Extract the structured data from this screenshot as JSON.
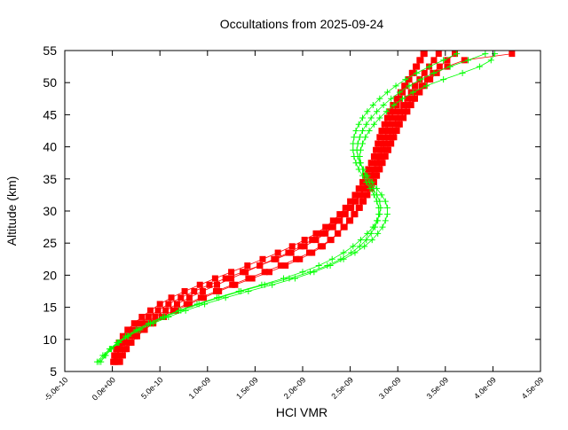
{
  "chart_data": {
    "type": "line",
    "title": "Occultations from 2025-09-24",
    "xlabel": "HCl VMR",
    "ylabel": "Altitude (km)",
    "xlim": [
      -5e-10,
      4.5e-09
    ],
    "ylim": [
      5,
      55
    ],
    "x_ticks": [
      -5e-10,
      0,
      5e-10,
      1e-09,
      1.5e-09,
      2e-09,
      2.5e-09,
      3e-09,
      3.5e-09,
      4e-09,
      4.5e-09
    ],
    "x_tick_labels": [
      "-5.0e-10",
      "0.0e+00",
      "5.0e-10",
      "1.0e-09",
      "1.5e-09",
      "2.0e-09",
      "2.5e-09",
      "3.0e-09",
      "3.5e-09",
      "4.0e-09",
      "4.5e-09"
    ],
    "y_ticks": [
      5,
      10,
      15,
      20,
      25,
      30,
      35,
      40,
      45,
      50,
      55
    ],
    "y_tick_labels": [
      "5",
      "10",
      "15",
      "20",
      "25",
      "30",
      "35",
      "40",
      "45",
      "50",
      "55"
    ],
    "grid": false,
    "colors": {
      "series_red": "#ff0000",
      "series_green": "#00ff00"
    },
    "altitudes": [
      6.5,
      7.5,
      8.5,
      9.5,
      10.5,
      11.5,
      12.5,
      13.5,
      14.5,
      15.5,
      16.5,
      17.5,
      18.5,
      19.5,
      20.5,
      21.5,
      22.5,
      23.5,
      24.5,
      25.5,
      26.5,
      27.5,
      28.5,
      29.5,
      30.5,
      31.5,
      32.5,
      33.5,
      34.5,
      35.5,
      36.5,
      37.5,
      38.5,
      39.5,
      40.5,
      41.5,
      42.5,
      43.5,
      44.5,
      45.5,
      46.5,
      47.5,
      48.5,
      49.5,
      50.5,
      51.5,
      52.5,
      53.5,
      54.5
    ],
    "series": [
      {
        "color": "red",
        "marker": "square",
        "x": [
          3e-11,
          5e-11,
          8e-11,
          1.2e-10,
          1.8e-10,
          2.6e-10,
          3.5e-10,
          4.5e-10,
          5.6e-10,
          6.8e-10,
          8.1e-10,
          9.5e-10,
          1.1e-09,
          1.25e-09,
          1.4e-09,
          1.55e-09,
          1.7e-09,
          1.85e-09,
          1.98e-09,
          2.1e-09,
          2.2e-09,
          2.3e-09,
          2.38e-09,
          2.44e-09,
          2.5e-09,
          2.55e-09,
          2.6e-09,
          2.64e-09,
          2.68e-09,
          2.72e-09,
          2.75e-09,
          2.78e-09,
          2.8e-09,
          2.82e-09,
          2.84e-09,
          2.86e-09,
          2.88e-09,
          2.9e-09,
          2.93e-09,
          2.96e-09,
          2.99e-09,
          3.02e-09,
          3.05e-09,
          3.08e-09,
          3.12e-09,
          3.16e-09,
          3.2e-09,
          3.24e-09,
          3.28e-09
        ]
      },
      {
        "color": "red",
        "marker": "square",
        "x": [
          1e-11,
          2e-11,
          4e-11,
          7e-11,
          1.1e-10,
          1.6e-10,
          2.3e-10,
          3.1e-10,
          4e-10,
          5e-10,
          6.2e-10,
          7.6e-10,
          9.2e-10,
          1.08e-09,
          1.25e-09,
          1.42e-09,
          1.58e-09,
          1.74e-09,
          1.89e-09,
          2.02e-09,
          2.14e-09,
          2.24e-09,
          2.32e-09,
          2.39e-09,
          2.45e-09,
          2.5e-09,
          2.55e-09,
          2.59e-09,
          2.63e-09,
          2.66e-09,
          2.69e-09,
          2.72e-09,
          2.75e-09,
          2.77e-09,
          2.79e-09,
          2.81e-09,
          2.83e-09,
          2.86e-09,
          2.89e-09,
          2.92e-09,
          2.95e-09,
          2.99e-09,
          3.03e-09,
          3.07e-09,
          3.11e-09,
          3.15e-09,
          3.19e-09,
          3.23e-09,
          3.27e-09
        ]
      },
      {
        "color": "red",
        "marker": "square",
        "x": [
          6e-11,
          9e-11,
          1.3e-10,
          1.8e-10,
          2.4e-10,
          3.2e-10,
          4.1e-10,
          5.2e-10,
          6.4e-10,
          7.8e-10,
          9.3e-10,
          1.09e-09,
          1.26e-09,
          1.43e-09,
          1.6e-09,
          1.77e-09,
          1.93e-09,
          2.07e-09,
          2.19e-09,
          2.29e-09,
          2.37e-09,
          2.44e-09,
          2.5e-09,
          2.55e-09,
          2.6e-09,
          2.64e-09,
          2.68e-09,
          2.72e-09,
          2.75e-09,
          2.78e-09,
          2.81e-09,
          2.84e-09,
          2.87e-09,
          2.9e-09,
          2.93e-09,
          2.96e-09,
          2.99e-09,
          3.02e-09,
          3.06e-09,
          3.1e-09,
          3.14e-09,
          3.18e-09,
          3.23e-09,
          3.28e-09,
          3.34e-09,
          3.41e-09,
          3.52e-09,
          3.7e-09,
          4.2e-09
        ]
      },
      {
        "color": "red",
        "marker": "square",
        "x": [
          2e-11,
          4e-11,
          7e-11,
          1e-10,
          1.5e-10,
          2.1e-10,
          2.9e-10,
          3.8e-10,
          4.8e-10,
          5.9e-10,
          7.2e-10,
          8.6e-10,
          1.02e-09,
          1.19e-09,
          1.37e-09,
          1.55e-09,
          1.72e-09,
          1.88e-09,
          2.02e-09,
          2.14e-09,
          2.24e-09,
          2.32e-09,
          2.39e-09,
          2.45e-09,
          2.51e-09,
          2.56e-09,
          2.61e-09,
          2.65e-09,
          2.69e-09,
          2.72e-09,
          2.75e-09,
          2.78e-09,
          2.81e-09,
          2.84e-09,
          2.87e-09,
          2.9e-09,
          2.93e-09,
          2.96e-09,
          2.99e-09,
          3.02e-09,
          3.06e-09,
          3.1e-09,
          3.14e-09,
          3.18e-09,
          3.23e-09,
          3.28e-09,
          3.33e-09,
          3.38e-09,
          3.43e-09
        ]
      },
      {
        "color": "red",
        "marker": "square",
        "x": [
          8e-11,
          1.1e-10,
          1.5e-10,
          2e-10,
          2.6e-10,
          3.4e-10,
          4.3e-10,
          5.4e-10,
          6.7e-10,
          8.1e-10,
          9.6e-10,
          1.12e-09,
          1.29e-09,
          1.47e-09,
          1.65e-09,
          1.82e-09,
          1.97e-09,
          2.1e-09,
          2.21e-09,
          2.3e-09,
          2.37e-09,
          2.43e-09,
          2.49e-09,
          2.54e-09,
          2.59e-09,
          2.63e-09,
          2.67e-09,
          2.7e-09,
          2.73e-09,
          2.76e-09,
          2.79e-09,
          2.82e-09,
          2.85e-09,
          2.88e-09,
          2.91e-09,
          2.94e-09,
          2.97e-09,
          3e-09,
          3.03e-09,
          3.07e-09,
          3.11e-09,
          3.15e-09,
          3.2e-09,
          3.25e-09,
          3.31e-09,
          3.37e-09,
          3.44e-09,
          3.52e-09,
          3.6e-09
        ]
      },
      {
        "color": "green",
        "marker": "plus",
        "x": [
          -1.6e-10,
          -1e-10,
          -3e-11,
          5e-11,
          1.4e-10,
          2.5e-10,
          3.8e-10,
          5.3e-10,
          7e-10,
          8.9e-10,
          1.1e-09,
          1.33e-09,
          1.57e-09,
          1.8e-09,
          2e-09,
          2.17e-09,
          2.31e-09,
          2.43e-09,
          2.53e-09,
          2.61e-09,
          2.68e-09,
          2.74e-09,
          2.78e-09,
          2.81e-09,
          2.82e-09,
          2.81e-09,
          2.78e-09,
          2.74e-09,
          2.7e-09,
          2.66e-09,
          2.63e-09,
          2.61e-09,
          2.6e-09,
          2.61e-09,
          2.63e-09,
          2.66e-09,
          2.7e-09,
          2.75e-09,
          2.81e-09,
          2.88e-09,
          2.96e-09,
          3.05e-09,
          3.16e-09,
          3.3e-09,
          3.48e-09,
          3.68e-09,
          3.86e-09,
          3.98e-09,
          4.02e-09
        ]
      },
      {
        "color": "green",
        "marker": "plus",
        "x": [
          -1.2e-10,
          -7e-11,
          -1e-11,
          7e-11,
          1.7e-10,
          2.9e-10,
          4.3e-10,
          5.9e-10,
          7.7e-10,
          9.7e-10,
          1.19e-09,
          1.43e-09,
          1.68e-09,
          1.92e-09,
          2.12e-09,
          2.29e-09,
          2.43e-09,
          2.55e-09,
          2.65e-09,
          2.73e-09,
          2.79e-09,
          2.84e-09,
          2.87e-09,
          2.89e-09,
          2.89e-09,
          2.87e-09,
          2.83e-09,
          2.78e-09,
          2.73e-09,
          2.68e-09,
          2.64e-09,
          2.6e-09,
          2.58e-09,
          2.57e-09,
          2.58e-09,
          2.6e-09,
          2.63e-09,
          2.67e-09,
          2.72e-09,
          2.78e-09,
          2.85e-09,
          2.93e-09,
          3.02e-09,
          3.12e-09,
          3.24e-09,
          3.38e-09,
          3.55e-09,
          3.74e-09,
          3.92e-09
        ]
      },
      {
        "color": "green",
        "marker": "plus",
        "x": [
          -1.4e-10,
          -8e-11,
          -2e-11,
          6e-11,
          1.6e-10,
          2.7e-10,
          4e-10,
          5.5e-10,
          7.2e-10,
          9.1e-10,
          1.12e-09,
          1.35e-09,
          1.6e-09,
          1.86e-09,
          2.08e-09,
          2.26e-09,
          2.4e-09,
          2.51e-09,
          2.6e-09,
          2.67e-09,
          2.72e-09,
          2.76e-09,
          2.79e-09,
          2.8e-09,
          2.8e-09,
          2.78e-09,
          2.75e-09,
          2.71e-09,
          2.67e-09,
          2.63e-09,
          2.59e-09,
          2.56e-09,
          2.54e-09,
          2.53e-09,
          2.53e-09,
          2.54e-09,
          2.56e-09,
          2.59e-09,
          2.63e-09,
          2.68e-09,
          2.74e-09,
          2.81e-09,
          2.89e-09,
          2.98e-09,
          3.08e-09,
          3.2e-09,
          3.33e-09,
          3.48e-09,
          3.62e-09
        ]
      }
    ]
  }
}
